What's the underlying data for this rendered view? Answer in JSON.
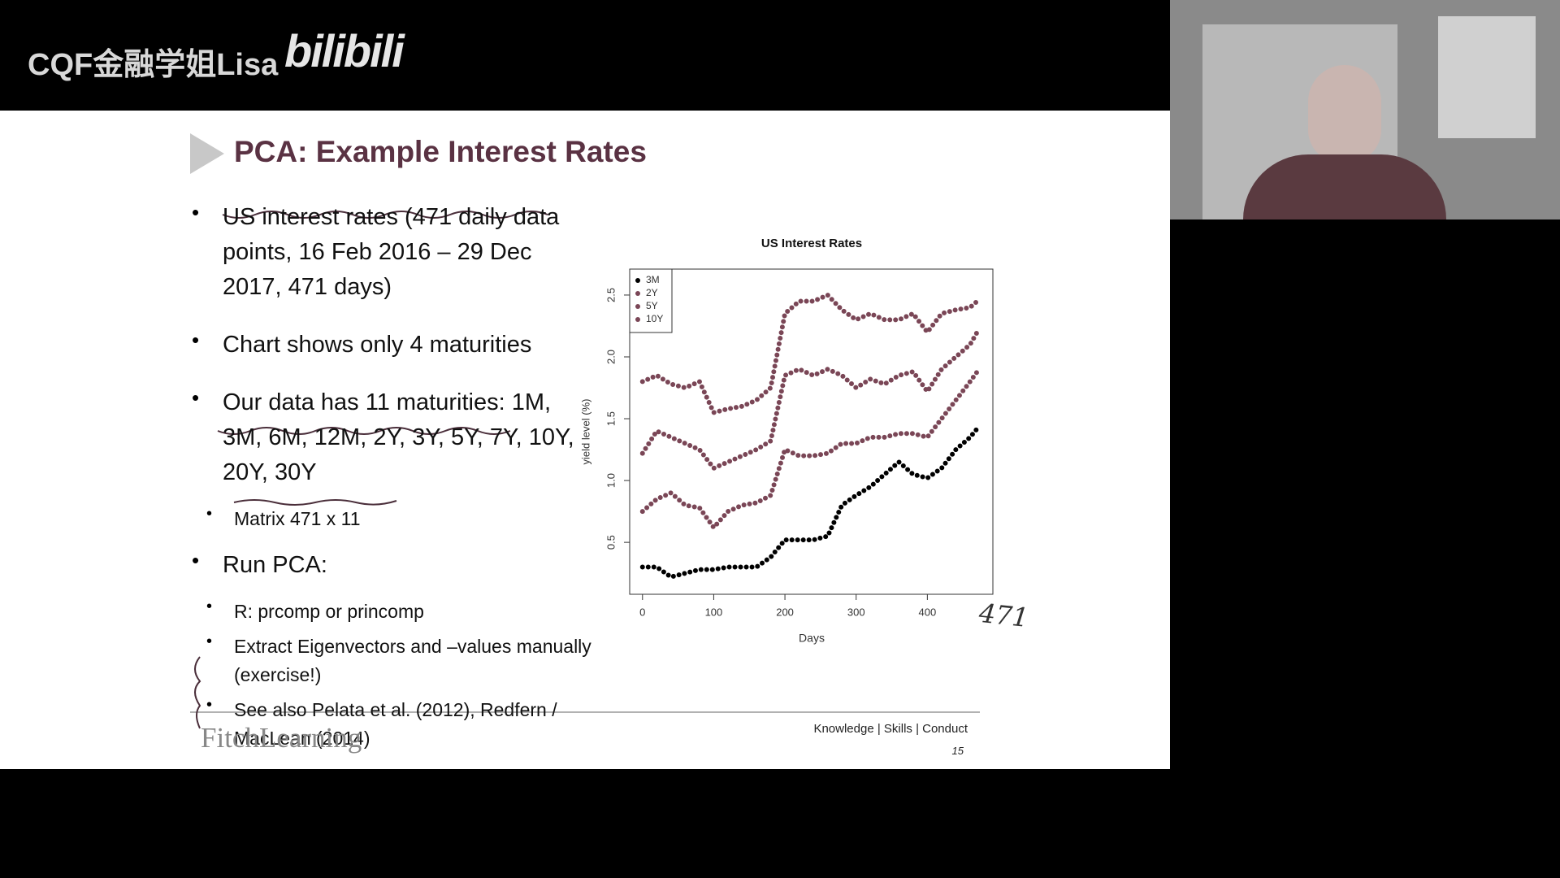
{
  "watermark": {
    "channel": "CQF金融学姐Lisa",
    "logo": "bilibili"
  },
  "slide": {
    "title": "PCA: Example Interest Rates",
    "bullets": [
      {
        "text": "US interest rates (471 daily data points, 16 Feb 2016 – 29 Dec 2017, 471 days)"
      },
      {
        "text": "Chart shows only 4 maturities"
      },
      {
        "text": "Our data has 11 maturities: 1M, 3M, 6M, 12M, 2Y, 3Y, 5Y, 7Y, 10Y, 20Y, 30Y",
        "sub": [
          "Matrix 471 x 11"
        ]
      },
      {
        "text": "Run PCA:",
        "sub": [
          "R: prcomp or princomp",
          "Extract Eigenvectors and –values manually (exercise!)",
          "See also Pelata et al. (2012), Redfern / MacLean (2014)"
        ]
      }
    ],
    "handwritten_note": "471",
    "footer": {
      "brand": "FitchLearning",
      "tagline": "Knowledge | Skills | Conduct",
      "page": "15"
    }
  },
  "chart_data": {
    "type": "line",
    "title": "US Interest Rates",
    "xlabel": "Days",
    "ylabel": "yield level (%)",
    "x": [
      0,
      20,
      40,
      60,
      80,
      100,
      120,
      140,
      160,
      180,
      200,
      220,
      240,
      260,
      280,
      300,
      320,
      340,
      360,
      380,
      400,
      420,
      440,
      460,
      470
    ],
    "series": [
      {
        "name": "3M",
        "color": "#000000",
        "values": [
          0.3,
          0.3,
          0.22,
          0.25,
          0.28,
          0.28,
          0.3,
          0.3,
          0.3,
          0.38,
          0.52,
          0.52,
          0.52,
          0.55,
          0.8,
          0.88,
          0.95,
          1.05,
          1.15,
          1.05,
          1.02,
          1.1,
          1.25,
          1.35,
          1.42
        ]
      },
      {
        "name": "2Y",
        "color": "#7a4656",
        "values": [
          0.75,
          0.85,
          0.9,
          0.8,
          0.78,
          0.62,
          0.75,
          0.8,
          0.82,
          0.88,
          1.25,
          1.2,
          1.2,
          1.22,
          1.3,
          1.3,
          1.35,
          1.35,
          1.38,
          1.38,
          1.35,
          1.5,
          1.65,
          1.8,
          1.88
        ]
      },
      {
        "name": "5Y",
        "color": "#7a4656",
        "values": [
          1.22,
          1.4,
          1.35,
          1.3,
          1.25,
          1.1,
          1.15,
          1.2,
          1.25,
          1.32,
          1.85,
          1.9,
          1.85,
          1.9,
          1.85,
          1.75,
          1.82,
          1.78,
          1.85,
          1.88,
          1.72,
          1.9,
          2.0,
          2.1,
          2.2
        ]
      },
      {
        "name": "10Y",
        "color": "#7a4656",
        "values": [
          1.8,
          1.85,
          1.78,
          1.75,
          1.8,
          1.55,
          1.58,
          1.6,
          1.65,
          1.75,
          2.35,
          2.45,
          2.45,
          2.5,
          2.38,
          2.3,
          2.35,
          2.3,
          2.3,
          2.35,
          2.2,
          2.35,
          2.38,
          2.4,
          2.45
        ]
      }
    ],
    "xlim": [
      -18,
      492
    ],
    "ylim": [
      0.08,
      2.71
    ],
    "xticks": [
      0,
      100,
      200,
      300,
      400
    ],
    "yticks": [
      0.5,
      {
        "value": 1,
        "label": "1.0"
      },
      1.5,
      {
        "value": 2,
        "label": "2.0"
      },
      2.5
    ],
    "legend": "top-left"
  }
}
